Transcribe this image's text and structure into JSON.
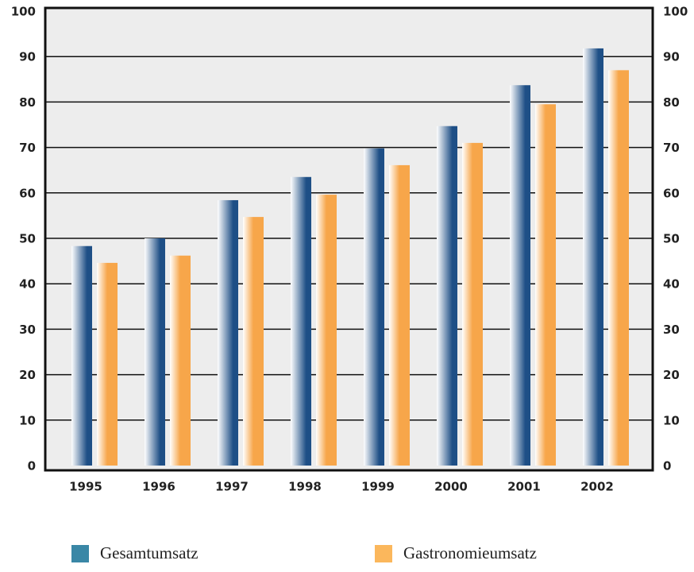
{
  "chart_data": {
    "type": "bar",
    "categories": [
      "1995",
      "1996",
      "1997",
      "1998",
      "1999",
      "2000",
      "2001",
      "2002"
    ],
    "series": [
      {
        "name": "Gesamtumsatz",
        "color": "#1e4f86",
        "legend_color": "#3a87a6",
        "values": [
          48.3,
          50,
          58.4,
          63.5,
          69.8,
          74.7,
          83.7,
          91.8
        ]
      },
      {
        "name": "Gastronomieumsatz",
        "color": "#f7a64a",
        "legend_color": "#fbb75c",
        "values": [
          44.6,
          46.2,
          54.7,
          59.6,
          66.1,
          71,
          79.5,
          87
        ]
      }
    ],
    "ylim": [
      0,
      100
    ],
    "yticks": [
      0,
      10,
      20,
      30,
      40,
      50,
      60,
      70,
      80,
      90,
      100
    ],
    "y2lim": [
      0,
      100
    ],
    "y2ticks": [
      0,
      10,
      20,
      30,
      40,
      50,
      60,
      70,
      80,
      90,
      100
    ],
    "grid": true
  }
}
